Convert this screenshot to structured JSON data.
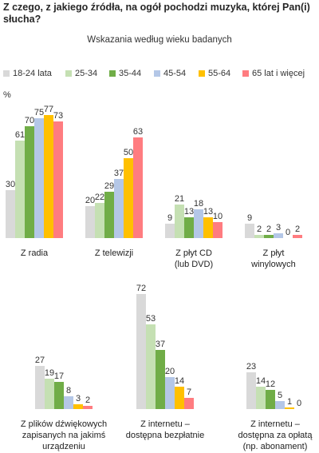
{
  "title": "Z czego, z jakiego źródła, na ogół pochodzi muzyka, której Pan(i) słucha?",
  "subtitle": "Wskazania według wieku badanych",
  "unit": "%",
  "colors": [
    "#d9d9d9",
    "#c5e0b3",
    "#70ad47",
    "#b4c7e7",
    "#ffc000",
    "#ff7c80"
  ],
  "chart_data": {
    "type": "bar",
    "title": "Z czego, z jakiego źródła, na ogół pochodzi muzyka, której Pan(i) słucha?",
    "subtitle": "Wskazania według wieku badanych",
    "ylabel": "%",
    "ylim": [
      0,
      80
    ],
    "legend_position": "top",
    "grid": false,
    "series": [
      {
        "name": "18-24 lata",
        "color": "#d9d9d9"
      },
      {
        "name": "25-34",
        "color": "#c5e0b3"
      },
      {
        "name": "35-44",
        "color": "#70ad47"
      },
      {
        "name": "45-54",
        "color": "#b4c7e7"
      },
      {
        "name": "55-64",
        "color": "#ffc000"
      },
      {
        "name": "65 lat i więcej",
        "color": "#ff7c80"
      }
    ],
    "categories": [
      {
        "label": [
          "Z radia"
        ],
        "values": [
          30,
          61,
          70,
          75,
          77,
          73
        ]
      },
      {
        "label": [
          "Z telewizji"
        ],
        "values": [
          20,
          22,
          29,
          37,
          50,
          63
        ]
      },
      {
        "label": [
          "Z płyt CD",
          "(lub DVD)"
        ],
        "values": [
          9,
          21,
          13,
          18,
          13,
          10
        ]
      },
      {
        "label": [
          "Z płyt",
          "winylowych"
        ],
        "values": [
          9,
          2,
          2,
          3,
          0,
          2
        ]
      },
      {
        "label": [
          "Z plików dźwiękowych",
          "zapisanych na jakimś",
          "urządzeniu"
        ],
        "values": [
          27,
          19,
          17,
          8,
          3,
          2
        ]
      },
      {
        "label": [
          "Z internetu –",
          "dostępna bezpłatnie"
        ],
        "values": [
          72,
          53,
          37,
          20,
          14,
          7
        ]
      },
      {
        "label": [
          "Z internetu –",
          "dostępna za opłatą",
          "(np. abonament)"
        ],
        "values": [
          23,
          14,
          12,
          5,
          1,
          0
        ]
      }
    ]
  }
}
